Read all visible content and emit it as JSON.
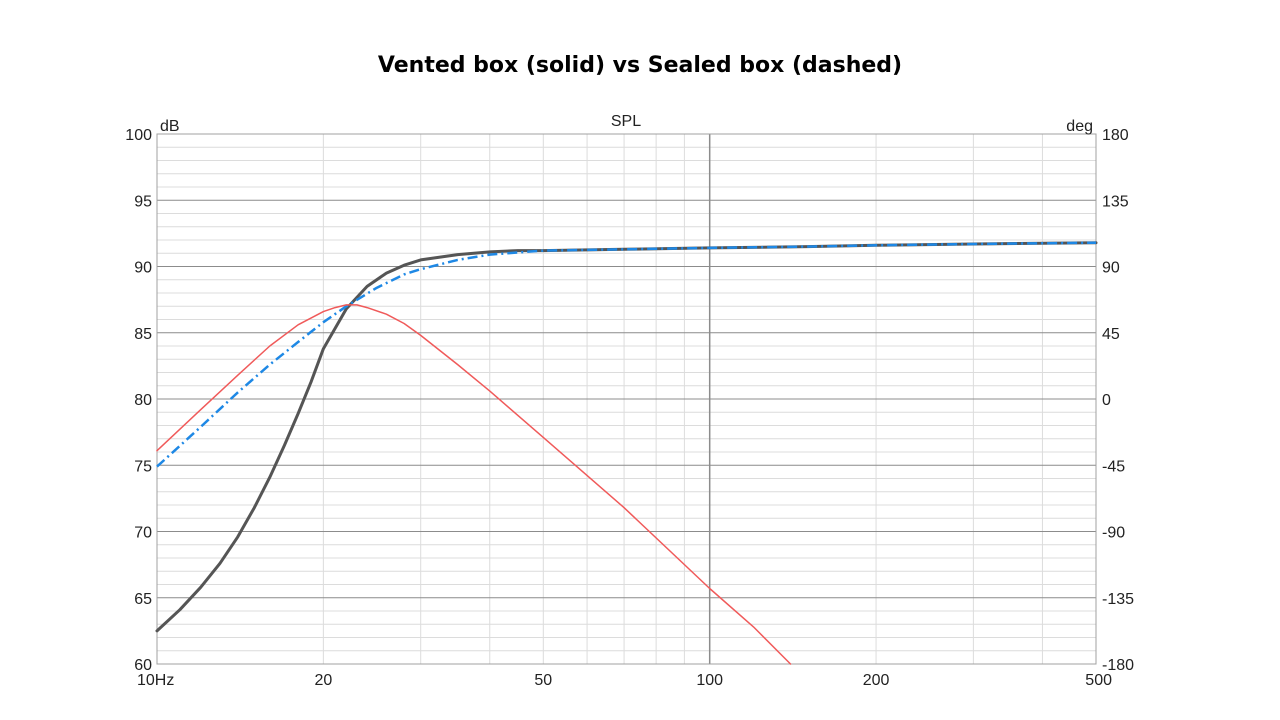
{
  "title": "Vented box (solid) vs Sealed box (dashed)",
  "chart_data": {
    "type": "line",
    "plot_title": "SPL",
    "ylabel_left": "dB",
    "ylabel_right": "deg",
    "x_scale": "log",
    "xlim": [
      10,
      500
    ],
    "ylim": [
      60,
      100
    ],
    "ylim_right": [
      -180,
      180
    ],
    "x_ticks": [
      {
        "value": 10,
        "label": "10Hz"
      },
      {
        "value": 20,
        "label": "20"
      },
      {
        "value": 50,
        "label": "50"
      },
      {
        "value": 100,
        "label": "100"
      },
      {
        "value": 200,
        "label": "200"
      },
      {
        "value": 500,
        "label": "500"
      }
    ],
    "y_ticks": [
      {
        "value": 100,
        "label": "100"
      },
      {
        "value": 95,
        "label": "95"
      },
      {
        "value": 90,
        "label": "90"
      },
      {
        "value": 85,
        "label": "85"
      },
      {
        "value": 80,
        "label": "80"
      },
      {
        "value": 75,
        "label": "75"
      },
      {
        "value": 70,
        "label": "70"
      },
      {
        "value": 65,
        "label": "65"
      },
      {
        "value": 60,
        "label": "60"
      }
    ],
    "y_ticks_right": [
      {
        "value": 180,
        "label": "180"
      },
      {
        "value": 135,
        "label": "135"
      },
      {
        "value": 90,
        "label": "90"
      },
      {
        "value": 45,
        "label": "45"
      },
      {
        "value": 0,
        "label": "0"
      },
      {
        "value": -45,
        "label": "-45"
      },
      {
        "value": -90,
        "label": "-90"
      },
      {
        "value": -135,
        "label": "-135"
      },
      {
        "value": -180,
        "label": "-180"
      }
    ],
    "grid": true,
    "series": [
      {
        "color": "#555555",
        "style": "solid",
        "x": [
          10,
          11,
          12,
          13,
          14,
          15,
          16,
          17,
          18,
          19,
          20,
          22,
          24,
          26,
          28,
          30,
          35,
          40,
          45,
          50,
          70,
          100,
          150,
          200,
          300,
          500
        ],
        "y": [
          62.5,
          64.1,
          65.8,
          67.6,
          69.6,
          71.8,
          74.1,
          76.5,
          78.9,
          81.3,
          83.8,
          86.8,
          88.5,
          89.5,
          90.1,
          90.5,
          90.9,
          91.1,
          91.2,
          91.2,
          91.3,
          91.4,
          91.5,
          91.6,
          91.7,
          91.8
        ]
      },
      {
        "color": "#1e88e5",
        "style": "dashdot",
        "x": [
          10,
          12,
          14,
          16,
          18,
          20,
          22,
          25,
          28,
          30,
          35,
          40,
          50,
          70,
          100,
          150,
          200,
          300,
          500
        ],
        "y": [
          74.9,
          77.9,
          80.5,
          82.6,
          84.3,
          85.8,
          87.0,
          88.4,
          89.4,
          89.8,
          90.5,
          90.9,
          91.2,
          91.3,
          91.4,
          91.5,
          91.6,
          91.7,
          91.8
        ]
      },
      {
        "color": "#f05a5a",
        "style": "solid",
        "x": [
          10,
          12,
          14,
          16,
          18,
          20,
          21,
          22,
          23,
          24,
          26,
          28,
          30,
          35,
          40,
          50,
          70,
          100,
          120,
          140
        ],
        "y": [
          76.1,
          79.2,
          81.8,
          84.0,
          85.6,
          86.6,
          86.9,
          87.1,
          87.1,
          86.9,
          86.4,
          85.7,
          84.8,
          82.6,
          80.6,
          77.1,
          71.8,
          65.7,
          62.8,
          60.0
        ]
      }
    ]
  }
}
